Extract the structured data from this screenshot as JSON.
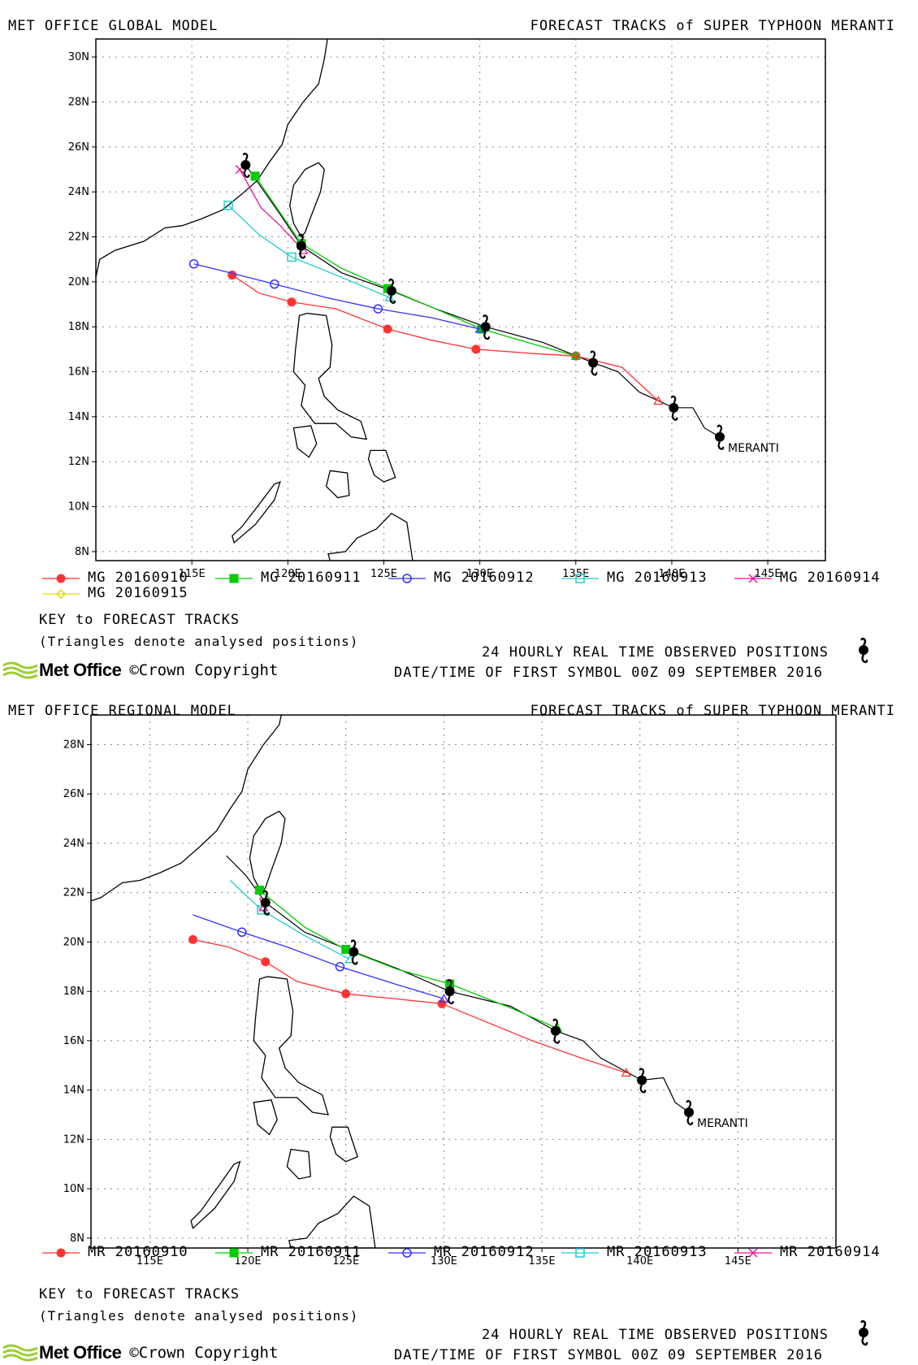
{
  "panels": [
    {
      "id": "global",
      "model_title": "MET OFFICE GLOBAL MODEL",
      "forecast_title": "FORECAST TRACKS of SUPER TYPHOON MERANTI",
      "storm_name": "MERANTI",
      "lon_range": [
        110,
        148
      ],
      "lat_range": [
        7.6,
        30.8
      ],
      "lon_ticks": [
        "115E",
        "120E",
        "125E",
        "130E",
        "135E",
        "140E",
        "145E"
      ],
      "lat_ticks": [
        "8N",
        "10N",
        "12N",
        "14N",
        "16N",
        "18N",
        "20N",
        "22N",
        "24N",
        "26N",
        "28N",
        "30N"
      ],
      "legend": [
        {
          "label": "MG 20160910",
          "color": "#ff3333",
          "marker": "filled-circle"
        },
        {
          "label": "MG 20160911",
          "color": "#00cc00",
          "marker": "filled-square"
        },
        {
          "label": "MG 20160912",
          "color": "#3333ff",
          "marker": "open-circle"
        },
        {
          "label": "MG 20160913",
          "color": "#22cccc",
          "marker": "open-square"
        },
        {
          "label": "MG 20160914",
          "color": "#ee1199",
          "marker": "cross"
        },
        {
          "label": "MG 20160915",
          "color": "#dddd00",
          "marker": "diamond"
        }
      ],
      "key_title": "KEY to FORECAST TRACKS",
      "key_note": "(Triangles denote analysed positions)",
      "observed_label": "24 HOURLY REAL TIME OBSERVED POSITIONS",
      "first_symbol_label": "DATE/TIME OF FIRST SYMBOL 00Z 09 SEPTEMBER 2016",
      "logo_text": "Met Office",
      "copyright": "©Crown Copyright"
    },
    {
      "id": "regional",
      "model_title": "MET OFFICE REGIONAL MODEL",
      "forecast_title": "FORECAST TRACKS of SUPER TYPHOON MERANTI",
      "storm_name": "MERANTI",
      "lon_range": [
        112,
        150
      ],
      "lat_range": [
        7.6,
        29.2
      ],
      "lon_ticks": [
        "115E",
        "120E",
        "125E",
        "130E",
        "135E",
        "140E",
        "145E"
      ],
      "lat_ticks": [
        "8N",
        "10N",
        "12N",
        "14N",
        "16N",
        "18N",
        "20N",
        "22N",
        "24N",
        "26N",
        "28N"
      ],
      "legend": [
        {
          "label": "MR 20160910",
          "color": "#ff3333",
          "marker": "filled-circle"
        },
        {
          "label": "MR 20160911",
          "color": "#00cc00",
          "marker": "filled-square"
        },
        {
          "label": "MR 20160912",
          "color": "#3333ff",
          "marker": "open-circle"
        },
        {
          "label": "MR 20160913",
          "color": "#22cccc",
          "marker": "open-square"
        },
        {
          "label": "MR 20160914",
          "color": "#ee1199",
          "marker": "cross"
        }
      ],
      "key_title": "KEY to FORECAST TRACKS",
      "key_note": "(Triangles denote analysed positions)",
      "observed_label": "24 HOURLY REAL TIME OBSERVED POSITIONS",
      "first_symbol_label": "DATE/TIME OF FIRST SYMBOL 00Z 09 SEPTEMBER 2016",
      "logo_text": "Met Office",
      "copyright": "©Crown Copyright"
    }
  ],
  "chart_data": [
    {
      "type": "scatter",
      "title": "FORECAST TRACKS of SUPER TYPHOON MERANTI",
      "xlabel": "",
      "ylabel": "",
      "xlim": [
        110,
        148
      ],
      "ylim": [
        7.6,
        30.8
      ],
      "observed_track": [
        [
          142.5,
          13.1
        ],
        [
          141.7,
          13.5
        ],
        [
          141.1,
          14.4
        ],
        [
          140.1,
          14.4
        ],
        [
          138.3,
          15.1
        ],
        [
          137.2,
          16.0
        ],
        [
          135.9,
          16.4
        ],
        [
          133.3,
          17.3
        ],
        [
          130.3,
          18.0
        ],
        [
          127.7,
          18.8
        ],
        [
          125.4,
          19.6
        ],
        [
          122.8,
          20.4
        ],
        [
          120.7,
          21.6
        ],
        [
          119.6,
          23.0
        ],
        [
          117.8,
          25.2
        ]
      ],
      "observed_symbols": [
        [
          142.5,
          13.1
        ],
        [
          140.1,
          14.4
        ],
        [
          135.9,
          16.4
        ],
        [
          130.3,
          18.0
        ],
        [
          125.4,
          19.6
        ],
        [
          120.7,
          21.6
        ],
        [
          117.8,
          25.2
        ]
      ],
      "series": [
        {
          "name": "MG 20160910",
          "color": "#ff3333",
          "points": [
            [
              139.3,
              14.7
            ],
            [
              137.4,
              16.2
            ],
            [
              135.0,
              16.7
            ],
            [
              133.0,
              16.8
            ],
            [
              129.8,
              17.0
            ],
            [
              127.5,
              17.4
            ],
            [
              125.2,
              17.9
            ],
            [
              122.5,
              18.8
            ],
            [
              120.2,
              19.1
            ],
            [
              118.5,
              19.5
            ],
            [
              117.1,
              20.3
            ]
          ],
          "markers": [
            [
              135.0,
              16.7
            ],
            [
              129.8,
              17.0
            ],
            [
              125.2,
              17.9
            ],
            [
              120.2,
              19.1
            ],
            [
              117.1,
              20.3
            ]
          ],
          "analysed": [
            139.3,
            14.7
          ]
        },
        {
          "name": "MG 20160911",
          "color": "#00cc00",
          "points": [
            [
              135.0,
              16.7
            ],
            [
              132.5,
              17.3
            ],
            [
              130.1,
              17.9
            ],
            [
              127.7,
              18.8
            ],
            [
              125.2,
              19.7
            ],
            [
              122.8,
              20.6
            ],
            [
              120.7,
              21.7
            ],
            [
              119.5,
              23.2
            ],
            [
              118.3,
              24.7
            ]
          ],
          "markers": [
            [
              130.1,
              17.9
            ],
            [
              125.2,
              19.7
            ],
            [
              120.7,
              21.7
            ],
            [
              118.3,
              24.7
            ]
          ],
          "analysed": [
            135.0,
            16.7
          ]
        },
        {
          "name": "MG 20160912",
          "color": "#3333ff",
          "points": [
            [
              130.0,
              17.9
            ],
            [
              127.5,
              18.4
            ],
            [
              124.7,
              18.8
            ],
            [
              122.0,
              19.3
            ],
            [
              119.3,
              19.9
            ],
            [
              117.0,
              20.4
            ],
            [
              115.1,
              20.8
            ]
          ],
          "markers": [
            [
              124.7,
              18.8
            ],
            [
              119.3,
              19.9
            ],
            [
              115.1,
              20.8
            ]
          ],
          "analysed": [
            130.0,
            17.9
          ]
        },
        {
          "name": "MG 20160913",
          "color": "#22cccc",
          "points": [
            [
              125.3,
              19.3
            ],
            [
              122.8,
              20.2
            ],
            [
              120.2,
              21.1
            ],
            [
              118.5,
              22.1
            ],
            [
              116.9,
              23.4
            ]
          ],
          "markers": [
            [
              120.2,
              21.1
            ],
            [
              116.9,
              23.4
            ]
          ],
          "analysed": [
            125.3,
            19.3
          ]
        },
        {
          "name": "MG 20160914",
          "color": "#ee1199",
          "points": [
            [
              120.8,
              21.4
            ],
            [
              119.6,
              22.5
            ],
            [
              118.6,
              23.3
            ],
            [
              117.5,
              25.0
            ]
          ],
          "markers": [
            [
              117.5,
              25.0
            ]
          ],
          "analysed": [
            120.8,
            21.4
          ]
        },
        {
          "name": "MG 20160915",
          "color": "#dddd00",
          "points": [
            [
              117.8,
              25.2
            ],
            [
              117.6,
              25.3
            ]
          ],
          "markers": [],
          "analysed": [
            117.8,
            25.2
          ]
        }
      ]
    },
    {
      "type": "scatter",
      "title": "FORECAST TRACKS of SUPER TYPHOON MERANTI",
      "xlabel": "",
      "ylabel": "",
      "xlim": [
        112,
        150
      ],
      "ylim": [
        7.6,
        29.2
      ],
      "observed_track": [
        [
          142.5,
          13.1
        ],
        [
          141.8,
          13.5
        ],
        [
          141.2,
          14.5
        ],
        [
          140.1,
          14.4
        ],
        [
          138.0,
          15.3
        ],
        [
          137.1,
          16.0
        ],
        [
          135.7,
          16.4
        ],
        [
          133.4,
          17.4
        ],
        [
          130.3,
          18.0
        ],
        [
          127.7,
          18.9
        ],
        [
          125.4,
          19.6
        ],
        [
          122.9,
          20.4
        ],
        [
          120.9,
          21.6
        ],
        [
          119.9,
          22.7
        ],
        [
          118.9,
          23.5
        ]
      ],
      "observed_symbols": [
        [
          142.5,
          13.1
        ],
        [
          140.1,
          14.4
        ],
        [
          135.7,
          16.4
        ],
        [
          130.3,
          18.0
        ],
        [
          125.4,
          19.6
        ],
        [
          120.9,
          21.6
        ]
      ],
      "series": [
        {
          "name": "MR 20160910",
          "color": "#ff3333",
          "points": [
            [
              139.3,
              14.7
            ],
            [
              137.0,
              15.3
            ],
            [
              134.5,
              16.0
            ],
            [
              129.9,
              17.5
            ],
            [
              127.5,
              17.7
            ],
            [
              125.0,
              17.9
            ],
            [
              122.5,
              18.4
            ],
            [
              120.9,
              19.2
            ],
            [
              119.0,
              19.8
            ],
            [
              117.2,
              20.1
            ]
          ],
          "markers": [
            [
              129.9,
              17.5
            ],
            [
              125.0,
              17.9
            ],
            [
              120.9,
              19.2
            ],
            [
              117.2,
              20.1
            ]
          ],
          "analysed": [
            139.3,
            14.7
          ]
        },
        {
          "name": "MR 20160911",
          "color": "#00cc00",
          "points": [
            [
              135.8,
              16.5
            ],
            [
              133.5,
              17.3
            ],
            [
              130.3,
              18.3
            ],
            [
              127.6,
              18.9
            ],
            [
              125.0,
              19.7
            ],
            [
              122.9,
              20.6
            ],
            [
              120.6,
              22.1
            ]
          ],
          "markers": [
            [
              130.3,
              18.3
            ],
            [
              125.0,
              19.7
            ],
            [
              120.6,
              22.1
            ]
          ],
          "analysed": [
            135.8,
            16.5
          ]
        },
        {
          "name": "MR 20160912",
          "color": "#3333ff",
          "points": [
            [
              130.0,
              17.7
            ],
            [
              127.5,
              18.3
            ],
            [
              124.7,
              19.0
            ],
            [
              122.0,
              19.8
            ],
            [
              119.7,
              20.4
            ],
            [
              117.2,
              21.1
            ]
          ],
          "markers": [
            [
              124.7,
              19.0
            ],
            [
              119.7,
              20.4
            ]
          ],
          "analysed": [
            130.0,
            17.7
          ]
        },
        {
          "name": "MR 20160913",
          "color": "#22cccc",
          "points": [
            [
              125.2,
              19.3
            ],
            [
              122.8,
              20.3
            ],
            [
              120.7,
              21.3
            ],
            [
              119.1,
              22.5
            ]
          ],
          "markers": [
            [
              120.7,
              21.3
            ]
          ],
          "analysed": [
            125.2,
            19.3
          ]
        },
        {
          "name": "MR 20160914",
          "color": "#ee1199",
          "points": [
            [
              120.8,
              21.4
            ],
            [
              120.6,
              21.8
            ]
          ],
          "markers": [],
          "analysed": [
            120.8,
            21.4
          ]
        }
      ]
    }
  ]
}
